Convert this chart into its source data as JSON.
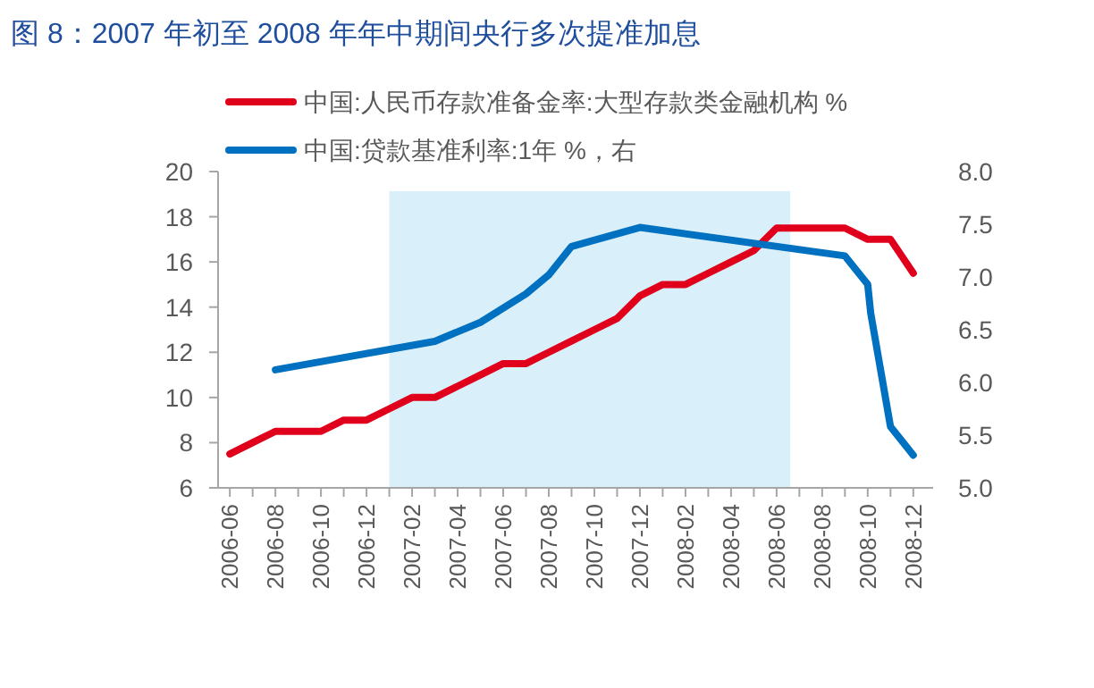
{
  "chart_data": {
    "type": "line",
    "title": "图 8：2007 年初至 2008 年年中期间央行多次提准加息",
    "legend": "top left",
    "xlim": [
      "2006-05-16",
      "2008-12-28"
    ],
    "xticks": [
      "2006-06",
      {
        "value": "2006-07",
        "label": null
      },
      "2006-08",
      {
        "value": "2006-09",
        "label": null
      },
      "2006-10",
      {
        "value": "2006-11",
        "label": null
      },
      "2006-12",
      {
        "value": "2007-01",
        "label": null
      },
      "2007-02",
      {
        "value": "2007-03",
        "label": null
      },
      "2007-04",
      {
        "value": "2007-05",
        "label": null
      },
      "2007-06",
      {
        "value": "2007-07",
        "label": null
      },
      "2007-08",
      {
        "value": "2007-09",
        "label": null
      },
      "2007-10",
      {
        "value": "2007-11",
        "label": null
      },
      "2007-12",
      {
        "value": "2008-01",
        "label": null
      },
      "2008-02",
      {
        "value": "2008-03",
        "label": null
      },
      "2008-04",
      {
        "value": "2008-05",
        "label": null
      },
      "2008-06",
      {
        "value": "2008-07",
        "label": null
      },
      "2008-08",
      {
        "value": "2008-09",
        "label": null
      },
      "2008-10",
      {
        "value": "2008-11",
        "label": null
      },
      "2008-12"
    ],
    "ylim": [
      6,
      20
    ],
    "yticks": [
      6,
      8,
      10,
      12,
      14,
      16,
      18,
      20
    ],
    "y2lim": [
      5.0,
      8.0
    ],
    "y2ticks": [
      {
        "value": 5.0,
        "label": "5.0"
      },
      {
        "value": 5.5,
        "label": "5.5"
      },
      {
        "value": 6.0,
        "label": "6.0"
      },
      {
        "value": 6.5,
        "label": "6.5"
      },
      {
        "value": 7.0,
        "label": "7.0"
      },
      {
        "value": 7.5,
        "label": "7.5"
      },
      {
        "value": 8.0,
        "label": "8.0"
      }
    ],
    "bands": [
      {
        "axis": "x",
        "from": "2007-01",
        "to": "2008-06-19",
        "color": "#d9f0fa"
      }
    ],
    "series": [
      {
        "name": "中国:人民币存款准备金率:大型存款类金融机构 %",
        "color": "#e0001b",
        "x": [
          "2006-06",
          "2006-07",
          "2006-08",
          "2006-09",
          "2006-10",
          "2006-11",
          "2006-12",
          "2007-01",
          "2007-02",
          "2007-03",
          "2007-04",
          "2007-05",
          "2007-06",
          "2007-07",
          "2007-08",
          "2007-09",
          "2007-10",
          "2007-11",
          "2007-12",
          "2008-01",
          "2008-02",
          "2008-03",
          "2008-04",
          "2008-05",
          "2008-06",
          "2008-07",
          "2008-08",
          "2008-09",
          "2008-10",
          "2008-11",
          "2008-12"
        ],
        "values": [
          7.5,
          8,
          8.5,
          8.5,
          8.5,
          9,
          9,
          9.5,
          10,
          10,
          10.5,
          11,
          11.5,
          11.5,
          12,
          12.5,
          13,
          13.5,
          14.5,
          15,
          15,
          15.5,
          16,
          16.5,
          17.5,
          17.5,
          17.5,
          17.5,
          17,
          17,
          15.5
        ]
      },
      {
        "name": "中国:贷款基准利率:1年 %，右",
        "color": "#0070c0",
        "axis": "y2",
        "x": [
          "2006-08",
          "2007-03",
          "2007-05",
          "2007-07",
          "2007-08",
          "2007-09",
          "2007-12",
          "2008-09",
          "2008-10",
          "2008-10-05",
          "2008-11",
          "2008-12"
        ],
        "values": [
          6.12,
          6.39,
          6.57,
          6.84,
          7.02,
          7.29,
          7.47,
          7.2,
          6.93,
          6.66,
          5.58,
          5.31
        ]
      }
    ]
  }
}
